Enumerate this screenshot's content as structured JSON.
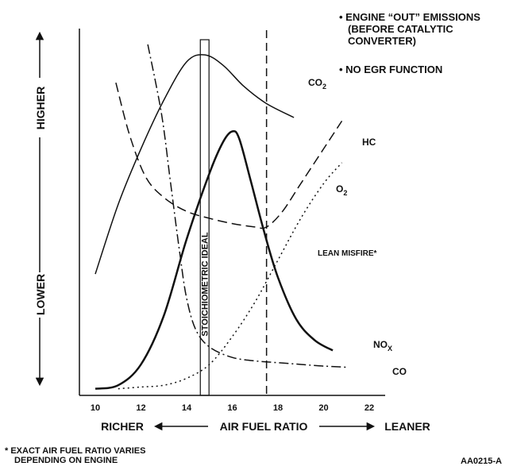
{
  "chart_data": {
    "type": "line",
    "title": "",
    "xlabel": "AIR FUEL RATIO",
    "x_left_label": "RICHER",
    "x_right_label": "LEANER",
    "ylabel_high": "HIGHER",
    "ylabel_low": "LOWER",
    "xlim": [
      9.1,
      22.7
    ],
    "ylim": [
      0,
      100
    ],
    "x_ticks": [
      10,
      12,
      14,
      16,
      18,
      20,
      22
    ],
    "grid": false,
    "series": [
      {
        "name": "CO2",
        "style": "solid",
        "width": 1.5,
        "points": [
          [
            10.0,
            34
          ],
          [
            11.0,
            54
          ],
          [
            12.0,
            70
          ],
          [
            13.0,
            84
          ],
          [
            14.0,
            95
          ],
          [
            14.8,
            97
          ],
          [
            15.6,
            94
          ],
          [
            16.5,
            88
          ],
          [
            17.5,
            83
          ],
          [
            18.7,
            79
          ]
        ]
      },
      {
        "name": "NOX",
        "style": "solid",
        "width": 2.5,
        "points": [
          [
            10.0,
            1
          ],
          [
            11.0,
            2
          ],
          [
            12.0,
            8
          ],
          [
            13.0,
            22
          ],
          [
            14.0,
            44
          ],
          [
            15.0,
            63
          ],
          [
            15.6,
            72
          ],
          [
            16.0,
            75
          ],
          [
            16.3,
            73
          ],
          [
            16.8,
            61
          ],
          [
            17.4,
            46
          ],
          [
            18.0,
            33
          ],
          [
            18.8,
            21
          ],
          [
            19.6,
            15
          ],
          [
            20.4,
            12
          ]
        ]
      },
      {
        "name": "HC",
        "style": "dashed",
        "width": 1.5,
        "points": [
          [
            10.9,
            89
          ],
          [
            11.5,
            74
          ],
          [
            12.2,
            62
          ],
          [
            13.0,
            56
          ],
          [
            14.0,
            52
          ],
          [
            15.0,
            50
          ],
          [
            16.0,
            48.5
          ],
          [
            17.0,
            47.5
          ],
          [
            17.5,
            47.5
          ],
          [
            18.2,
            52
          ],
          [
            19.0,
            60
          ],
          [
            20.0,
            70
          ],
          [
            20.8,
            78
          ]
        ]
      },
      {
        "name": "O2",
        "style": "dotted",
        "width": 1.5,
        "points": [
          [
            11.0,
            1
          ],
          [
            12.0,
            1.5
          ],
          [
            13.0,
            2
          ],
          [
            14.0,
            4
          ],
          [
            15.0,
            8
          ],
          [
            16.0,
            16
          ],
          [
            17.0,
            26
          ],
          [
            18.0,
            38
          ],
          [
            19.0,
            50
          ],
          [
            20.0,
            60
          ],
          [
            20.8,
            66
          ]
        ]
      },
      {
        "name": "CO",
        "style": "dashdot",
        "width": 1.5,
        "points": [
          [
            12.3,
            100
          ],
          [
            12.9,
            80
          ],
          [
            13.3,
            60
          ],
          [
            13.7,
            40
          ],
          [
            14.0,
            27
          ],
          [
            14.4,
            18
          ],
          [
            15.0,
            13
          ],
          [
            16.0,
            10
          ],
          [
            17.0,
            9
          ],
          [
            18.0,
            8.5
          ],
          [
            19.0,
            8
          ],
          [
            20.0,
            7.5
          ],
          [
            21.0,
            7.2
          ]
        ]
      }
    ],
    "series_labels": {
      "co2": "CO",
      "co2_sub": "2",
      "hc": "HC",
      "o2": "O",
      "o2_sub": "2",
      "nox": "NO",
      "nox_sub": "X",
      "co": "CO"
    },
    "stoichiometric": {
      "label": "STOICHIOMETRIC IDEAL",
      "x_from": 14.6,
      "x_to": 14.98
    },
    "lean_misfire": {
      "label": "LEAN MISFIRE*",
      "x": 17.5
    }
  },
  "notes": {
    "bullet1_line1": "• ENGINE “OUT” EMISSIONS",
    "bullet1_line2": "(BEFORE CATALYTIC",
    "bullet1_line3": "CONVERTER)",
    "bullet2": "• NO EGR FUNCTION",
    "footnote_line1": "* EXACT AIR FUEL RATIO VARIES",
    "footnote_line2": "DEPENDING ON ENGINE",
    "figure_id": "AA0215-A"
  }
}
